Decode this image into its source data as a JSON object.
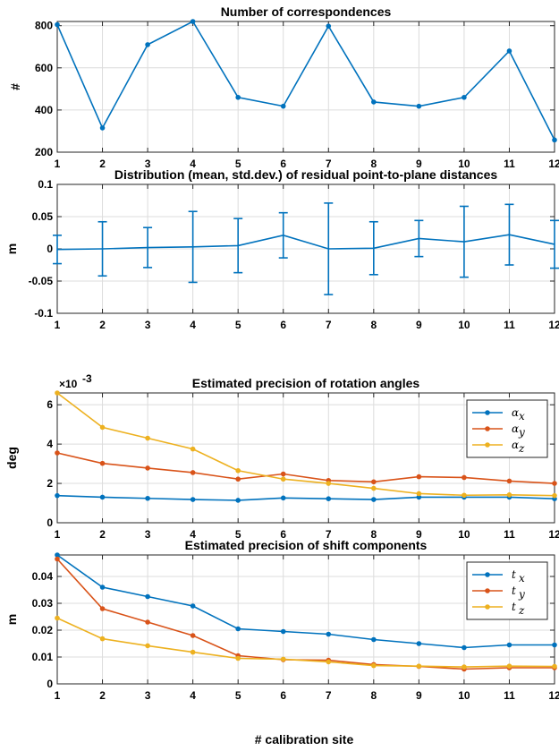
{
  "xlabel": "# calibration site",
  "chart_data": [
    {
      "type": "line",
      "title": "Number of correspondences",
      "ylabel": "#",
      "x": [
        1,
        2,
        3,
        4,
        5,
        6,
        7,
        8,
        9,
        10,
        11,
        12
      ],
      "xlim": [
        1,
        12
      ],
      "ylim": [
        200,
        820
      ],
      "yticks": [
        200,
        400,
        600,
        800
      ],
      "ytick_labels": [
        "200",
        "400",
        "600",
        "800"
      ],
      "grid": true,
      "series": [
        {
          "values": [
            805,
            315,
            710,
            820,
            460,
            418,
            798,
            438,
            418,
            460,
            680,
            258
          ],
          "color": "#0072BD"
        }
      ]
    },
    {
      "type": "line",
      "title": "Distribution (mean, std.dev.) of residual point-to-plane distances",
      "ylabel": "m",
      "x": [
        1,
        2,
        3,
        4,
        5,
        6,
        7,
        8,
        9,
        10,
        11,
        12
      ],
      "xlim": [
        1,
        12
      ],
      "ylim": [
        -0.1,
        0.1
      ],
      "yticks": [
        -0.1,
        -0.05,
        0,
        0.05,
        0.1
      ],
      "ytick_labels": [
        "-0.1",
        "-0.05",
        "0",
        "0.05",
        "0.1"
      ],
      "grid": true,
      "series": [
        {
          "values": [
            -0.001,
            0.0,
            0.002,
            0.003,
            0.005,
            0.021,
            0.0,
            0.001,
            0.016,
            0.011,
            0.022,
            0.007
          ],
          "errors": [
            0.022,
            0.042,
            0.031,
            0.055,
            0.042,
            0.035,
            0.071,
            0.041,
            0.028,
            0.055,
            0.047,
            0.037
          ],
          "color": "#0072BD"
        }
      ]
    },
    {
      "type": "line",
      "title": "Estimated precision of rotation angles",
      "ylabel": "deg",
      "exponent_label": "×10",
      "exponent_power": "-3",
      "x": [
        1,
        2,
        3,
        4,
        5,
        6,
        7,
        8,
        9,
        10,
        11,
        12
      ],
      "xlim": [
        1,
        12
      ],
      "ylim": [
        0,
        6.6
      ],
      "yticks": [
        0,
        2,
        4,
        6
      ],
      "ytick_labels": [
        "0",
        "2",
        "4",
        "6"
      ],
      "grid": true,
      "legend": "top-right",
      "series": [
        {
          "name": "α",
          "sub": "x",
          "values": [
            1.38,
            1.3,
            1.24,
            1.18,
            1.14,
            1.26,
            1.22,
            1.18,
            1.3,
            1.3,
            1.3,
            1.22
          ],
          "color": "#0072BD"
        },
        {
          "name": "α",
          "sub": "y",
          "values": [
            3.55,
            3.02,
            2.78,
            2.55,
            2.22,
            2.48,
            2.15,
            2.08,
            2.34,
            2.3,
            2.12,
            2.0
          ],
          "color": "#D95319"
        },
        {
          "name": "α",
          "sub": "z",
          "values": [
            6.6,
            4.85,
            4.3,
            3.75,
            2.65,
            2.22,
            2.0,
            1.75,
            1.48,
            1.4,
            1.42,
            1.38
          ],
          "color": "#EDB120"
        }
      ]
    },
    {
      "type": "line",
      "title": "Estimated precision of shift components",
      "ylabel": "m",
      "x": [
        1,
        2,
        3,
        4,
        5,
        6,
        7,
        8,
        9,
        10,
        11,
        12
      ],
      "xlim": [
        1,
        12
      ],
      "ylim": [
        0,
        0.048
      ],
      "yticks": [
        0,
        0.01,
        0.02,
        0.03,
        0.04
      ],
      "ytick_labels": [
        "0",
        "0.01",
        "0.02",
        "0.03",
        "0.04"
      ],
      "grid": true,
      "legend": "top-right",
      "series": [
        {
          "name": "t",
          "sub": "x",
          "values": [
            0.048,
            0.036,
            0.0325,
            0.029,
            0.0205,
            0.0195,
            0.0185,
            0.0165,
            0.015,
            0.0135,
            0.0145,
            0.0145
          ],
          "color": "#0072BD"
        },
        {
          "name": "t",
          "sub": "y",
          "values": [
            0.0465,
            0.028,
            0.023,
            0.018,
            0.0105,
            0.009,
            0.0088,
            0.0072,
            0.0065,
            0.0055,
            0.006,
            0.006
          ],
          "color": "#D95319"
        },
        {
          "name": "t",
          "sub": "z",
          "values": [
            0.0245,
            0.0168,
            0.0142,
            0.0118,
            0.0095,
            0.0092,
            0.0082,
            0.0068,
            0.0066,
            0.0063,
            0.0066,
            0.0065
          ],
          "color": "#EDB120"
        }
      ]
    }
  ]
}
